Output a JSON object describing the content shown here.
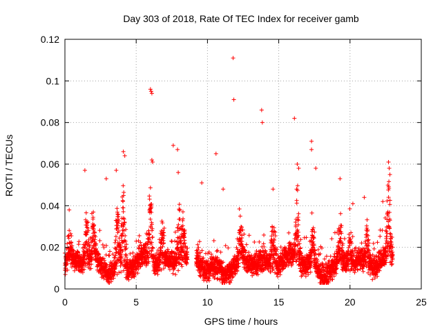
{
  "chart_data": {
    "type": "scatter",
    "title": "Day 303 of 2018, Rate Of TEC Index for receiver gamb",
    "xlabel": "GPS time / hours",
    "ylabel": "ROTI / TECUs",
    "xlim": [
      0,
      25
    ],
    "ylim": [
      0,
      0.12
    ],
    "xticks": [
      0,
      5,
      10,
      15,
      20,
      25
    ],
    "xtick_labels": [
      "0",
      "5",
      "10",
      "15",
      "20",
      "25"
    ],
    "yticks": [
      0,
      0.02,
      0.04,
      0.06,
      0.08,
      0.1,
      0.12
    ],
    "ytick_labels": [
      "0",
      "0.02",
      "0.04",
      "0.06",
      "0.08",
      "0.1",
      "0.12"
    ],
    "grid": true,
    "marker": "plus",
    "color": "#ff0000",
    "data_gap_hours": [
      8.6,
      9.2
    ],
    "highlighted_points": [
      {
        "x": 0.3,
        "y": 0.038
      },
      {
        "x": 1.4,
        "y": 0.057
      },
      {
        "x": 2.9,
        "y": 0.053
      },
      {
        "x": 3.6,
        "y": 0.057
      },
      {
        "x": 4.1,
        "y": 0.066
      },
      {
        "x": 4.2,
        "y": 0.064
      },
      {
        "x": 6.0,
        "y": 0.096
      },
      {
        "x": 6.05,
        "y": 0.095
      },
      {
        "x": 6.1,
        "y": 0.094
      },
      {
        "x": 6.1,
        "y": 0.062
      },
      {
        "x": 6.15,
        "y": 0.061
      },
      {
        "x": 7.6,
        "y": 0.069
      },
      {
        "x": 7.9,
        "y": 0.067
      },
      {
        "x": 7.95,
        "y": 0.056
      },
      {
        "x": 9.6,
        "y": 0.051
      },
      {
        "x": 10.6,
        "y": 0.065
      },
      {
        "x": 11.1,
        "y": 0.048
      },
      {
        "x": 11.8,
        "y": 0.111
      },
      {
        "x": 11.85,
        "y": 0.091
      },
      {
        "x": 12.3,
        "y": 0.035
      },
      {
        "x": 13.8,
        "y": 0.086
      },
      {
        "x": 13.85,
        "y": 0.08
      },
      {
        "x": 14.6,
        "y": 0.048
      },
      {
        "x": 16.1,
        "y": 0.082
      },
      {
        "x": 16.3,
        "y": 0.06
      },
      {
        "x": 16.4,
        "y": 0.058
      },
      {
        "x": 17.3,
        "y": 0.071
      },
      {
        "x": 17.3,
        "y": 0.067
      },
      {
        "x": 17.6,
        "y": 0.058
      },
      {
        "x": 19.3,
        "y": 0.053
      },
      {
        "x": 20.2,
        "y": 0.041
      },
      {
        "x": 21.0,
        "y": 0.044
      },
      {
        "x": 22.3,
        "y": 0.042
      },
      {
        "x": 22.7,
        "y": 0.061
      },
      {
        "x": 22.75,
        "y": 0.058
      },
      {
        "x": 22.8,
        "y": 0.055
      }
    ],
    "series_summary": {
      "name": "ROTI",
      "x_range_hours": [
        0,
        23.0
      ],
      "typical_range": [
        0.005,
        0.03
      ],
      "dense_bursts": [
        {
          "center": 0.3,
          "peak": 0.038
        },
        {
          "center": 1.5,
          "peak": 0.047
        },
        {
          "center": 2.0,
          "peak": 0.045
        },
        {
          "center": 3.7,
          "peak": 0.058
        },
        {
          "center": 4.1,
          "peak": 0.066
        },
        {
          "center": 6.0,
          "peak": 0.062
        },
        {
          "center": 6.8,
          "peak": 0.045
        },
        {
          "center": 8.0,
          "peak": 0.056
        },
        {
          "center": 8.3,
          "peak": 0.047
        },
        {
          "center": 12.3,
          "peak": 0.04
        },
        {
          "center": 14.6,
          "peak": 0.049
        },
        {
          "center": 16.3,
          "peak": 0.06
        },
        {
          "center": 17.4,
          "peak": 0.045
        },
        {
          "center": 19.3,
          "peak": 0.045
        },
        {
          "center": 20.0,
          "peak": 0.041
        },
        {
          "center": 21.2,
          "peak": 0.044
        },
        {
          "center": 22.7,
          "peak": 0.061
        }
      ]
    }
  }
}
